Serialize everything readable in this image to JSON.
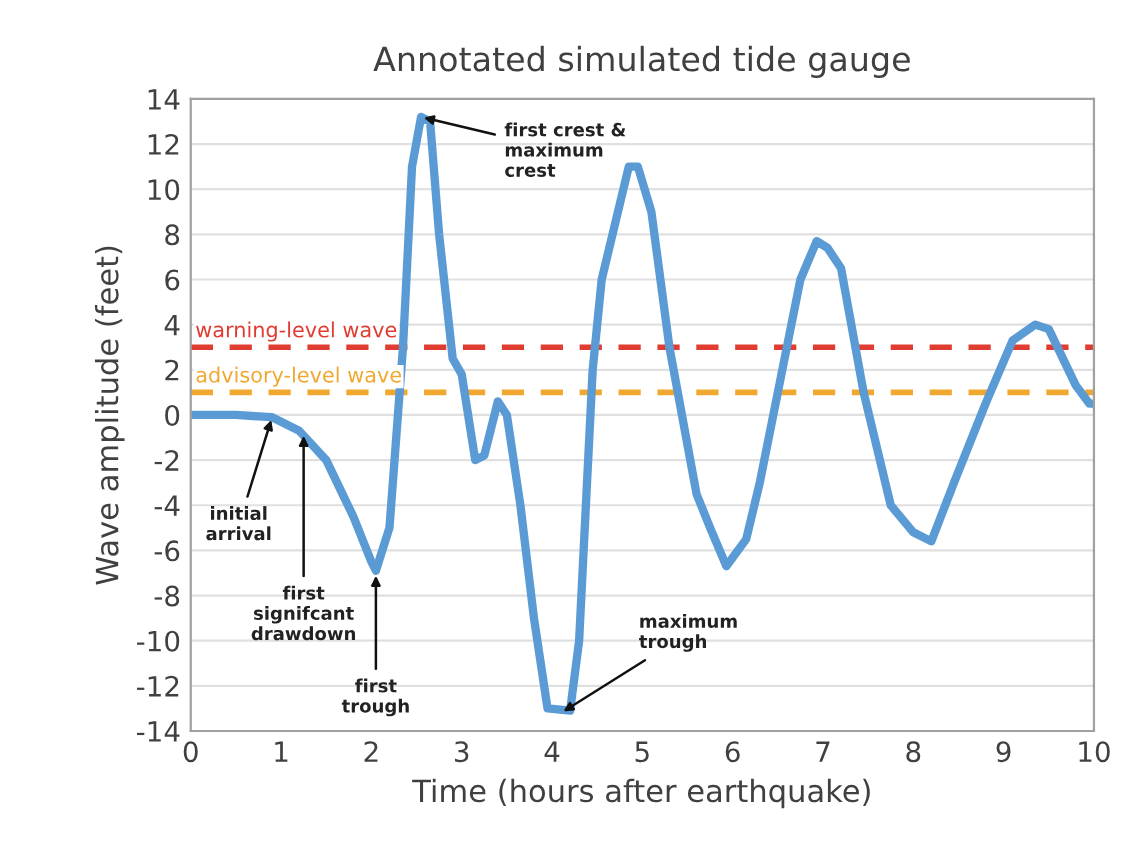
{
  "chart_data": {
    "type": "line",
    "title": "Annotated simulated tide gauge",
    "xlabel": "Time (hours after earthquake)",
    "ylabel": "Wave amplitude (feet)",
    "xlim": [
      0,
      10
    ],
    "xticks": [
      0,
      1,
      2,
      3,
      4,
      5,
      6,
      7,
      8,
      9,
      10
    ],
    "ylim": [
      -14,
      14
    ],
    "yticks": [
      -14,
      -12,
      -10,
      -8,
      -6,
      -4,
      -2,
      0,
      2,
      4,
      6,
      8,
      10,
      12,
      14
    ],
    "grid": "y",
    "legend": false,
    "marker": "none",
    "line_style": "solid",
    "series": [
      {
        "color": "#5b9bd5",
        "x": [
          0,
          0.5,
          0.9,
          1.2,
          1.5,
          1.8,
          2.0,
          2.05,
          2.2,
          2.35,
          2.45,
          2.55,
          2.65,
          2.75,
          2.9,
          3.0,
          3.15,
          3.25,
          3.4,
          3.5,
          3.65,
          3.8,
          3.95,
          4.2,
          4.3,
          4.45,
          4.55,
          4.7,
          4.85,
          4.95,
          5.1,
          5.3,
          5.6,
          5.75,
          5.93,
          6.15,
          6.3,
          6.55,
          6.75,
          6.93,
          7.05,
          7.2,
          7.45,
          7.75,
          8.0,
          8.2,
          8.45,
          8.8,
          9.1,
          9.35,
          9.5,
          9.8,
          9.95,
          10
        ],
        "values": [
          0,
          0,
          -0.1,
          -0.7,
          -2,
          -4.5,
          -6.5,
          -6.9,
          -5,
          3,
          11,
          13.2,
          13,
          8,
          2.5,
          1.8,
          -2,
          -1.8,
          0.6,
          0,
          -4,
          -9,
          -13,
          -13.1,
          -10,
          2,
          6,
          8.5,
          11,
          11,
          9,
          3,
          -3.5,
          -5,
          -6.7,
          -5.5,
          -3,
          2,
          6,
          7.7,
          7.4,
          6.5,
          1,
          -4,
          -5.2,
          -5.6,
          -3,
          0.5,
          3.3,
          4,
          3.8,
          1.3,
          0.5,
          0.5
        ]
      }
    ],
    "ref_lines": [
      {
        "axis": "y",
        "value": 3,
        "label": "warning-level wave",
        "color": "#e03c31",
        "line_style": "dashed"
      },
      {
        "axis": "y",
        "value": 1,
        "label": "advisory-level wave",
        "color": "#f0a830",
        "line_style": "dashed"
      }
    ],
    "annotations": [
      {
        "text": "first crest &\nmaximum\ncrest",
        "x": 2.55,
        "y": 13.2
      },
      {
        "text": "initial\narrival",
        "x": 0.9,
        "y": -0.1
      },
      {
        "text": "first\nsignifcant\ndrawdown",
        "x": 1.25,
        "y": -0.8
      },
      {
        "text": "first\ntrough",
        "x": 2.05,
        "y": -7
      },
      {
        "text": "maximum\ntrough",
        "x": 4.1,
        "y": -13.2
      }
    ]
  }
}
